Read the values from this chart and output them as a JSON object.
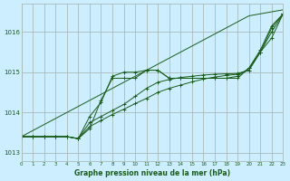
{
  "background_color": "#cceeff",
  "grid_color": "#aabbbb",
  "line_color": "#1a5c1a",
  "marker_color": "#1a5c1a",
  "xlabel": "Graphe pression niveau de la mer (hPa)",
  "xlim": [
    0,
    23
  ],
  "ylim": [
    1012.8,
    1016.7
  ],
  "yticks": [
    1013,
    1014,
    1015,
    1016
  ],
  "xticks": [
    0,
    1,
    2,
    3,
    4,
    5,
    6,
    7,
    8,
    9,
    10,
    11,
    12,
    13,
    14,
    15,
    16,
    17,
    18,
    19,
    20,
    21,
    22,
    23
  ],
  "series": [
    [
      1013.4,
      1013.4,
      1013.4,
      1013.4,
      1013.4,
      1013.35,
      1013.6,
      1014.3,
      1014.85,
      1014.85,
      1014.85,
      1015.05,
      1015.05,
      1014.85,
      1014.85,
      1014.85,
      1014.85,
      1014.85,
      1014.85,
      1014.85,
      1015.1,
      1015.5,
      1016.1,
      1016.45
    ],
    [
      1013.4,
      1013.4,
      1013.4,
      1013.4,
      1013.4,
      1013.35,
      1013.75,
      1013.9,
      1014.05,
      1014.2,
      1014.4,
      1014.6,
      1014.75,
      1014.82,
      1014.87,
      1014.9,
      1014.93,
      1014.95,
      1014.96,
      1014.97,
      1015.05,
      1015.5,
      1016.0,
      1016.45
    ],
    [
      1013.4,
      1013.4,
      1013.4,
      1013.4,
      1013.4,
      1013.35,
      1013.65,
      1013.8,
      1013.95,
      1014.08,
      1014.22,
      1014.35,
      1014.5,
      1014.6,
      1014.68,
      1014.76,
      1014.83,
      1014.88,
      1014.92,
      1014.95,
      1015.05,
      1015.5,
      1015.85,
      1016.45
    ],
    [
      1013.4,
      1013.4,
      1013.4,
      1013.4,
      1013.4,
      1013.35,
      1013.9,
      1014.25,
      1014.9,
      1015.0,
      1015.0,
      1015.05,
      1015.05,
      1014.85,
      1014.85,
      1014.85,
      1014.85,
      1014.85,
      1014.85,
      1014.9,
      1015.1,
      1015.55,
      1016.15,
      1016.45
    ]
  ],
  "series_no_marker": [
    [
      1013.4,
      1013.55,
      1013.7,
      1013.85,
      1014.0,
      1014.15,
      1014.3,
      1014.45,
      1014.6,
      1014.75,
      1014.9,
      1015.05,
      1015.2,
      1015.35,
      1015.5,
      1015.65,
      1015.8,
      1015.95,
      1016.1,
      1016.25,
      1016.4,
      1016.45,
      1016.5,
      1016.55
    ]
  ]
}
